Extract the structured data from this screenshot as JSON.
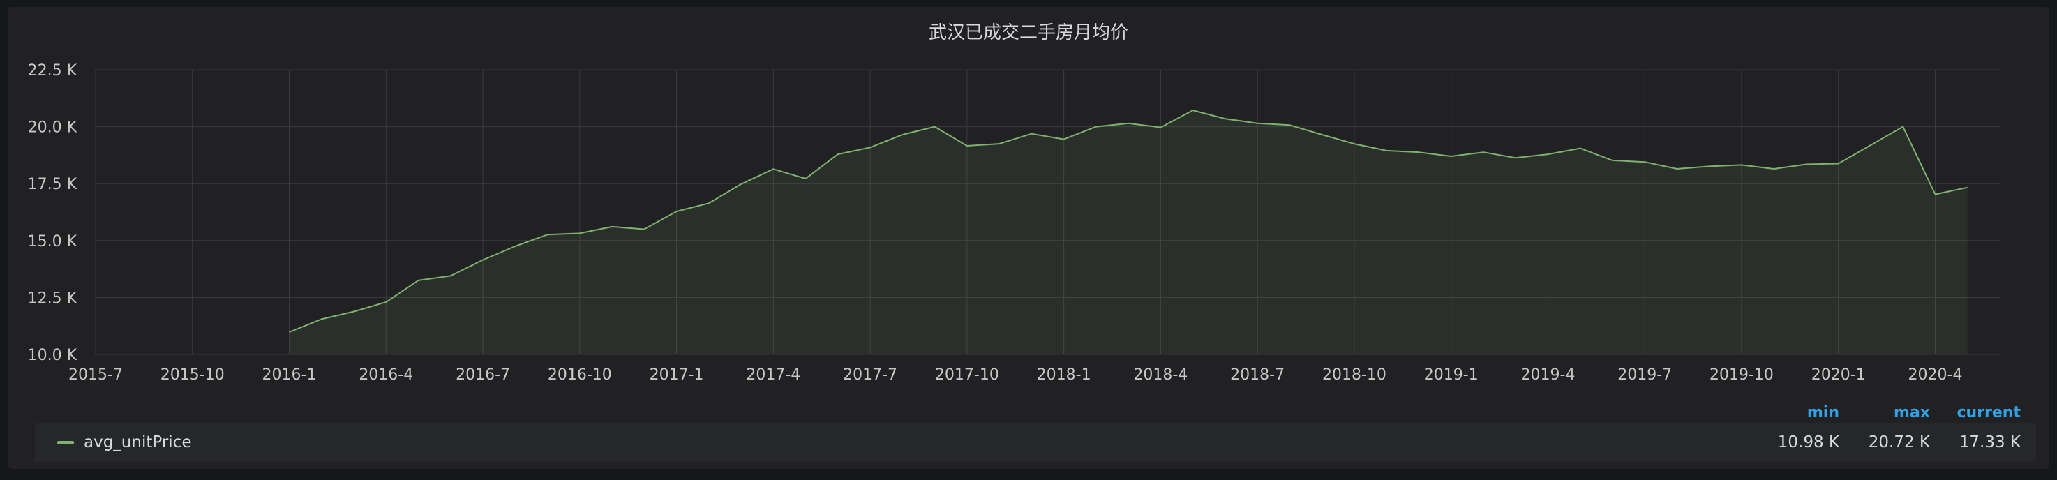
{
  "panel": {
    "title": "武汉已成交二手房月均价"
  },
  "legend": {
    "headers": {
      "min": "min",
      "max": "max",
      "current": "current"
    },
    "series_name": "avg_unitPrice",
    "min": "10.98 K",
    "max": "20.72 K",
    "current": "17.33 K"
  },
  "chart_data": {
    "type": "area",
    "title": "武汉已成交二手房月均价",
    "xlabel": "",
    "ylabel": "",
    "x_ticks": [
      "2015-7",
      "2015-10",
      "2016-1",
      "2016-4",
      "2016-7",
      "2016-10",
      "2017-1",
      "2017-4",
      "2017-7",
      "2017-10",
      "2018-1",
      "2018-4",
      "2018-7",
      "2018-10",
      "2019-1",
      "2019-4",
      "2019-7",
      "2019-10",
      "2020-1",
      "2020-4"
    ],
    "y_ticks": [
      "10.0 K",
      "12.5 K",
      "15.0 K",
      "17.5 K",
      "20.0 K",
      "22.5 K"
    ],
    "ylim": [
      10000,
      22500
    ],
    "xlim": [
      "2015-07",
      "2020-06"
    ],
    "grid": true,
    "legend_position": "bottom",
    "colors": {
      "line": "#7eb26d",
      "fill": "#7eb26d",
      "grid": "#3a3b3f"
    },
    "series": [
      {
        "name": "avg_unitPrice",
        "x": [
          "2016-01",
          "2016-02",
          "2016-03",
          "2016-04",
          "2016-05",
          "2016-06",
          "2016-07",
          "2016-08",
          "2016-09",
          "2016-10",
          "2016-11",
          "2016-12",
          "2017-01",
          "2017-02",
          "2017-03",
          "2017-04",
          "2017-05",
          "2017-06",
          "2017-07",
          "2017-08",
          "2017-09",
          "2017-10",
          "2017-11",
          "2017-12",
          "2018-01",
          "2018-02",
          "2018-03",
          "2018-04",
          "2018-05",
          "2018-06",
          "2018-07",
          "2018-08",
          "2018-09",
          "2018-10",
          "2018-11",
          "2018-12",
          "2019-01",
          "2019-02",
          "2019-03",
          "2019-04",
          "2019-05",
          "2019-06",
          "2019-07",
          "2019-08",
          "2019-09",
          "2019-10",
          "2019-11",
          "2019-12",
          "2020-01",
          "2020-03",
          "2020-04",
          "2020-05"
        ],
        "values": [
          10980,
          11550,
          11880,
          12300,
          13250,
          13450,
          14150,
          14750,
          15260,
          15320,
          15610,
          15500,
          16280,
          16640,
          17480,
          18140,
          17720,
          18790,
          19090,
          19650,
          20000,
          19160,
          19250,
          19690,
          19450,
          20000,
          20150,
          19970,
          20720,
          20350,
          20150,
          20070,
          19650,
          19250,
          18950,
          18880,
          18700,
          18880,
          18630,
          18790,
          19050,
          18520,
          18450,
          18150,
          18260,
          18320,
          18150,
          18350,
          18380,
          20000,
          17030,
          17330
        ]
      }
    ]
  }
}
